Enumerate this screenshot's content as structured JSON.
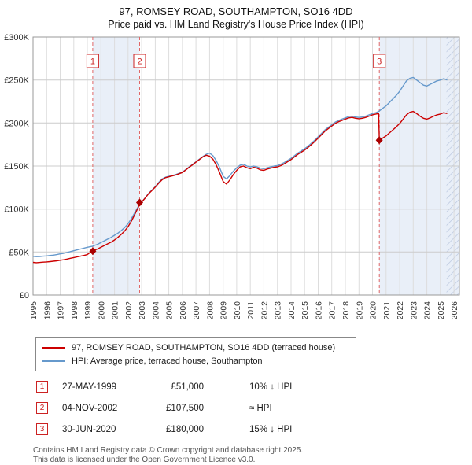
{
  "chart_data": {
    "type": "line",
    "title": "97, ROMSEY ROAD, SOUTHAMPTON, SO16 4DD",
    "subtitle": "Price paid vs. HM Land Registry's House Price Index (HPI)",
    "xlabel": "",
    "ylabel": "",
    "x_range": [
      1995,
      2026.4
    ],
    "y_range": [
      0,
      300000
    ],
    "grid": true,
    "legend_position": "bottom",
    "yticks": [
      {
        "v": 0,
        "label": "£0"
      },
      {
        "v": 50000,
        "label": "£50K"
      },
      {
        "v": 100000,
        "label": "£100K"
      },
      {
        "v": 150000,
        "label": "£150K"
      },
      {
        "v": 200000,
        "label": "£200K"
      },
      {
        "v": 250000,
        "label": "£250K"
      },
      {
        "v": 300000,
        "label": "£300K"
      }
    ],
    "xticks": [
      1995,
      1996,
      1997,
      1998,
      1999,
      2000,
      2001,
      2002,
      2003,
      2004,
      2005,
      2006,
      2007,
      2008,
      2009,
      2010,
      2011,
      2012,
      2013,
      2014,
      2015,
      2016,
      2017,
      2018,
      2019,
      2020,
      2021,
      2022,
      2023,
      2024,
      2025,
      2026
    ],
    "colors": {
      "property": "#cc0000",
      "hpi": "#6699cc",
      "marker": "#aa0000",
      "marker_box": "#cc2222",
      "dashed": "#e06666",
      "band": "#e9eff8",
      "hatch": "#b9c6de",
      "grid_h": "#cccccc",
      "grid_v": "#dddddd",
      "border": "#999999"
    },
    "x": [
      1995,
      1995.25,
      1995.5,
      1995.75,
      1996,
      1996.25,
      1996.5,
      1996.75,
      1997,
      1997.25,
      1997.5,
      1997.75,
      1998,
      1998.25,
      1998.5,
      1998.75,
      1999,
      1999.25,
      1999.4,
      1999.5,
      1999.75,
      2000,
      2000.25,
      2000.5,
      2000.75,
      2001,
      2001.25,
      2001.5,
      2001.75,
      2002,
      2002.25,
      2002.5,
      2002.75,
      2002.85,
      2003,
      2003.25,
      2003.5,
      2003.75,
      2004,
      2004.25,
      2004.5,
      2004.75,
      2005,
      2005.25,
      2005.5,
      2005.75,
      2006,
      2006.25,
      2006.5,
      2006.75,
      2007,
      2007.25,
      2007.5,
      2007.75,
      2008,
      2008.25,
      2008.5,
      2008.75,
      2009,
      2009.25,
      2009.5,
      2009.75,
      2010,
      2010.25,
      2010.5,
      2010.75,
      2011,
      2011.25,
      2011.5,
      2011.75,
      2012,
      2012.25,
      2012.5,
      2012.75,
      2013,
      2013.25,
      2013.5,
      2013.75,
      2014,
      2014.25,
      2014.5,
      2014.75,
      2015,
      2015.25,
      2015.5,
      2015.75,
      2016,
      2016.25,
      2016.5,
      2016.75,
      2017,
      2017.25,
      2017.5,
      2017.75,
      2018,
      2018.25,
      2018.5,
      2018.75,
      2019,
      2019.25,
      2019.5,
      2019.75,
      2020,
      2020.25,
      2020.45,
      2020.5,
      2020.75,
      2021,
      2021.25,
      2021.5,
      2021.75,
      2022,
      2022.25,
      2022.5,
      2022.75,
      2023,
      2023.25,
      2023.5,
      2023.75,
      2024,
      2024.25,
      2024.5,
      2024.75,
      2025,
      2025.25,
      2025.5
    ],
    "series": [
      {
        "id": "property",
        "name": "97, ROMSEY ROAD, SOUTHAMPTON, SO16 4DD (terraced house)",
        "color": "#cc0000",
        "values": [
          38000,
          37600,
          37900,
          38200,
          38500,
          38900,
          39300,
          39800,
          40400,
          41000,
          41800,
          42700,
          43500,
          44400,
          45200,
          46000,
          47000,
          50000,
          51000,
          52000,
          53500,
          55500,
          57500,
          59500,
          61500,
          64000,
          67000,
          70500,
          74500,
          79500,
          86000,
          94000,
          102000,
          107500,
          108000,
          112500,
          117500,
          121500,
          125500,
          130000,
          134000,
          136500,
          137500,
          138500,
          139500,
          141000,
          142500,
          145500,
          148500,
          151500,
          154500,
          157500,
          160500,
          162500,
          161500,
          158000,
          151000,
          142000,
          132000,
          129000,
          134000,
          140000,
          145000,
          149000,
          150000,
          148000,
          147000,
          148500,
          147500,
          145500,
          145000,
          146500,
          147500,
          148500,
          149000,
          150500,
          152500,
          155000,
          157500,
          160500,
          163500,
          166000,
          168500,
          171500,
          175000,
          178500,
          182500,
          186500,
          190500,
          193500,
          196500,
          199500,
          201500,
          203000,
          204500,
          206000,
          206500,
          205500,
          205000,
          205500,
          206500,
          208000,
          209500,
          210500,
          211000,
          180000,
          182500,
          185000,
          188500,
          192000,
          195500,
          199500,
          204500,
          209500,
          212500,
          213500,
          211000,
          208000,
          205500,
          204500,
          206000,
          208000,
          209500,
          210500,
          212000,
          211000
        ]
      },
      {
        "id": "hpi",
        "name": "HPI: Average price, terraced house, Southampton",
        "color": "#6699cc",
        "values": [
          45000,
          44600,
          44800,
          45200,
          45500,
          46000,
          46400,
          47000,
          47800,
          48500,
          49500,
          50500,
          51500,
          52500,
          53500,
          54500,
          55500,
          56300,
          56800,
          57500,
          59000,
          61000,
          63000,
          65000,
          67000,
          69500,
          72000,
          75000,
          78500,
          83000,
          89000,
          96000,
          103000,
          106500,
          108000,
          113000,
          118000,
          122000,
          126000,
          131000,
          135000,
          137000,
          138000,
          139000,
          140000,
          141500,
          143000,
          146000,
          149000,
          152000,
          155000,
          158000,
          161000,
          163500,
          165000,
          162000,
          156000,
          148000,
          138000,
          135000,
          139000,
          144000,
          148000,
          151000,
          152000,
          150000,
          149000,
          150000,
          149000,
          147500,
          147000,
          148000,
          149000,
          150000,
          150500,
          152000,
          154000,
          156500,
          159000,
          162000,
          165000,
          167500,
          170000,
          173000,
          176500,
          180000,
          184000,
          188000,
          192000,
          195000,
          198000,
          201000,
          203000,
          204500,
          206000,
          207500,
          208000,
          207000,
          206500,
          207000,
          208000,
          209500,
          211000,
          212000,
          213500,
          214000,
          217000,
          220000,
          224000,
          228000,
          232000,
          237000,
          243000,
          249000,
          252000,
          253000,
          250000,
          247000,
          244000,
          243000,
          245000,
          247000,
          249000,
          250000,
          251500,
          250000
        ]
      }
    ],
    "markers": [
      {
        "num": "1",
        "x": 1999.4,
        "y": 51000
      },
      {
        "num": "2",
        "x": 2002.85,
        "y": 107500
      },
      {
        "num": "3",
        "x": 2020.5,
        "y": 180000
      }
    ],
    "bands": [
      {
        "from": 1999.4,
        "to": 2002.85
      },
      {
        "from": 2020.5,
        "to": 2026.4
      }
    ],
    "hatch_from": 2025.45
  },
  "transactions": [
    {
      "num": "1",
      "date": "27-MAY-1999",
      "price": "£51,000",
      "hpi_note": "10% ↓ HPI"
    },
    {
      "num": "2",
      "date": "04-NOV-2002",
      "price": "£107,500",
      "hpi_note": "≈ HPI"
    },
    {
      "num": "3",
      "date": "30-JUN-2020",
      "price": "£180,000",
      "hpi_note": "15% ↓ HPI"
    }
  ],
  "footer": {
    "line1": "Contains HM Land Registry data © Crown copyright and database right 2025.",
    "line2": "This data is licensed under the Open Government Licence v3.0."
  }
}
